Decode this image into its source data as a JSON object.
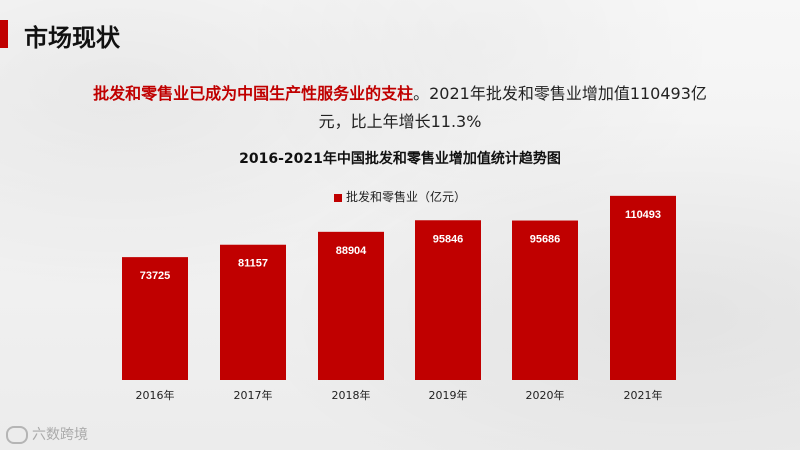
{
  "page_title": "市场现状",
  "summary": {
    "highlight": "批发和零售业已成为中国生产性服务业的支柱",
    "rest": "。2021年批发和零售业增加值110493亿元，比上年增长11.3%"
  },
  "logo_text": "六数跨境",
  "colors": {
    "accent": "#c00000",
    "bar": "#c00000"
  },
  "chart_data": {
    "type": "bar",
    "title": "2016-2021年中国批发和零售业增加值统计趋势图",
    "categories": [
      "2016年",
      "2017年",
      "2018年",
      "2019年",
      "2020年",
      "2021年"
    ],
    "series": [
      {
        "name": "批发和零售业（亿元）",
        "values": [
          73725,
          81157,
          88904,
          95846,
          95686,
          110493
        ]
      }
    ],
    "ylim": [
      0,
      120000
    ],
    "grid": false,
    "legend_position": "top-center",
    "data_labels": true
  }
}
